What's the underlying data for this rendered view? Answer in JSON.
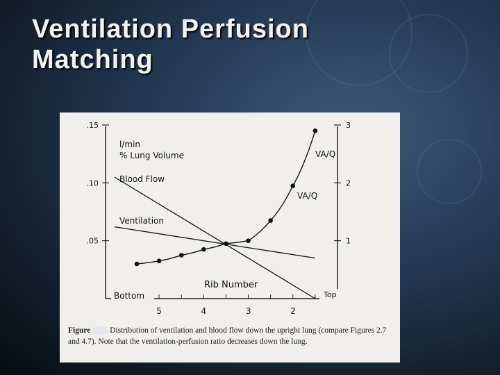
{
  "slide": {
    "title_line1": "Ventilation Perfusion",
    "title_line2": "Matching"
  },
  "chart_data": {
    "type": "line",
    "left_axis_units": [
      "l/min",
      "% Lung Volume"
    ],
    "right_axis_label": "VA/Q",
    "left_ticks": [
      ".05",
      ".10",
      ".15"
    ],
    "right_ticks": [
      "1",
      "2",
      "3"
    ],
    "x_ticks": [
      "5",
      "4",
      "3",
      "2"
    ],
    "x_title": "Rib Number",
    "x_end_labels": [
      "Bottom",
      "Top"
    ],
    "ylim_left": [
      0,
      0.15
    ],
    "ylim_right": [
      0,
      3.0
    ],
    "x_range_ribs": [
      6.2,
      1.0
    ],
    "series": [
      {
        "name": "Blood Flow",
        "axis": "left",
        "x": [
          6.0,
          1.5
        ],
        "y": [
          0.105,
          0.0
        ]
      },
      {
        "name": "Ventilation",
        "axis": "left",
        "x": [
          6.0,
          1.5
        ],
        "y": [
          0.062,
          0.035
        ]
      },
      {
        "name": "VA/Q",
        "axis": "right",
        "x": [
          5.5,
          5.0,
          4.5,
          4.0,
          3.5,
          3.0,
          2.5,
          2.0,
          1.5
        ],
        "y": [
          0.6,
          0.65,
          0.75,
          0.85,
          0.95,
          1.0,
          1.35,
          1.95,
          2.9
        ]
      }
    ]
  },
  "caption": {
    "label": "Figure",
    "text": "Distribution of ventilation and blood flow down the upright lung (compare Figures 2.7 and 4.7). Note that the ventilation-perfusion ratio decreases down the lung."
  }
}
